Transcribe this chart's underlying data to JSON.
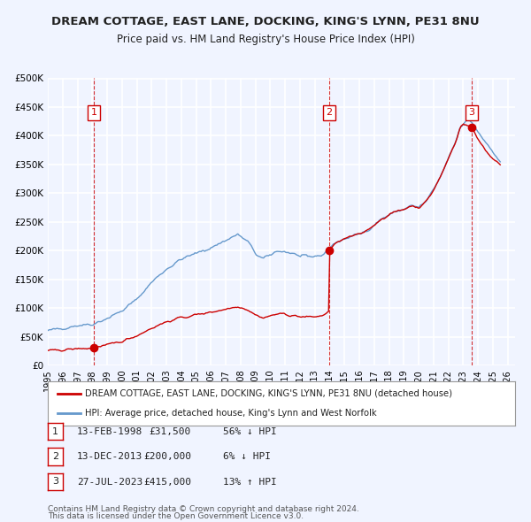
{
  "title": "DREAM COTTAGE, EAST LANE, DOCKING, KING'S LYNN, PE31 8NU",
  "subtitle": "Price paid vs. HM Land Registry's House Price Index (HPI)",
  "bg_color": "#f0f4ff",
  "plot_bg_color": "#f0f4ff",
  "grid_color": "#ffffff",
  "hpi_color": "#6699cc",
  "price_color": "#cc0000",
  "sale_marker_color": "#cc0000",
  "vline_color": "#cc0000",
  "ylim": [
    0,
    500000
  ],
  "yticks": [
    0,
    50000,
    100000,
    150000,
    200000,
    250000,
    300000,
    350000,
    400000,
    450000,
    500000
  ],
  "ytick_labels": [
    "£0",
    "£50K",
    "£100K",
    "£150K",
    "£200K",
    "£250K",
    "£300K",
    "£350K",
    "£400K",
    "£450K",
    "£500K"
  ],
  "xlim_start": 1995.0,
  "xlim_end": 2026.5,
  "xticks": [
    1995,
    1996,
    1997,
    1998,
    1999,
    2000,
    2001,
    2002,
    2003,
    2004,
    2005,
    2006,
    2007,
    2008,
    2009,
    2010,
    2011,
    2012,
    2013,
    2014,
    2015,
    2016,
    2017,
    2018,
    2019,
    2020,
    2021,
    2022,
    2023,
    2024,
    2025,
    2026
  ],
  "sale_dates": [
    1998.12,
    2013.96,
    2023.57
  ],
  "sale_prices": [
    31500,
    200000,
    415000
  ],
  "sale_labels": [
    "1",
    "2",
    "3"
  ],
  "legend_label_red": "DREAM COTTAGE, EAST LANE, DOCKING, KING'S LYNN, PE31 8NU (detached house)",
  "legend_label_blue": "HPI: Average price, detached house, King's Lynn and West Norfolk",
  "table_rows": [
    {
      "num": "1",
      "date": "13-FEB-1998",
      "price": "£31,500",
      "hpi": "56% ↓ HPI"
    },
    {
      "num": "2",
      "date": "13-DEC-2013",
      "price": "£200,000",
      "hpi": "6% ↓ HPI"
    },
    {
      "num": "3",
      "date": "27-JUL-2023",
      "price": "£415,000",
      "hpi": "13% ↑ HPI"
    }
  ],
  "footnote1": "Contains HM Land Registry data © Crown copyright and database right 2024.",
  "footnote2": "This data is licensed under the Open Government Licence v3.0."
}
